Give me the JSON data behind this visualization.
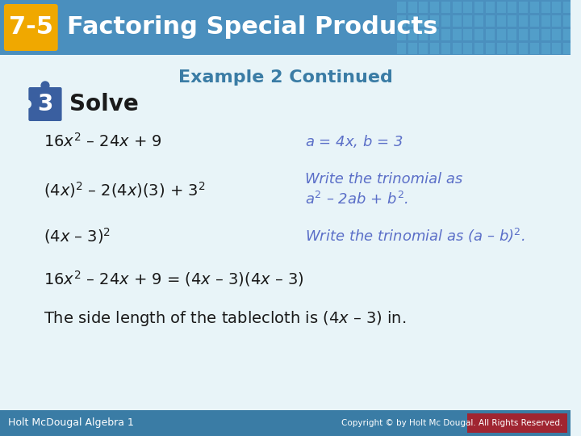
{
  "title_badge": "7-5",
  "title_text": "Factoring Special Products",
  "subtitle": "Example 2 Continued",
  "step_number": "3",
  "step_label": "Solve",
  "header_bg": "#4a8fbe",
  "header_bg2": "#5ba3d0",
  "body_bg": "#e8f4f8",
  "teal_color": "#3a7ca5",
  "blue_purple": "#5b6fc8",
  "badge_color": "#f0a800",
  "puzzle_color": "#3a5fa0",
  "black": "#1a1a1a",
  "footer_bg": "#3a7ca5",
  "footer_text_left": "Holt McDougal Algebra 1",
  "footer_text_right": "Copyright © by Holt Mc Dougal. All Rights Reserved.",
  "lines": [
    {
      "left": "16$x^2$ – 24$x$ + 9",
      "right": "$a$ = 4$x$, $b$ = 3",
      "right_italic": true
    },
    {
      "left": "(4$x$)$^2$ – 2(4$x$)(3) + 3$^2$",
      "right": "Write the trinomial as\n$a^2$ – 2$ab$ + $b^2$.",
      "right_italic": true
    },
    {
      "left": "(4$x$ – 3)$^2$",
      "right": "Write the trinomial as ($a$ – $b$)$^2$.",
      "right_italic": true
    }
  ],
  "equation_line": "16$x^2$ – 24$x$ + 9 = (4$x$ – 3)(4$x$ – 3)",
  "conclusion": "The side length of the tablecloth is (4$x$ – 3) in."
}
